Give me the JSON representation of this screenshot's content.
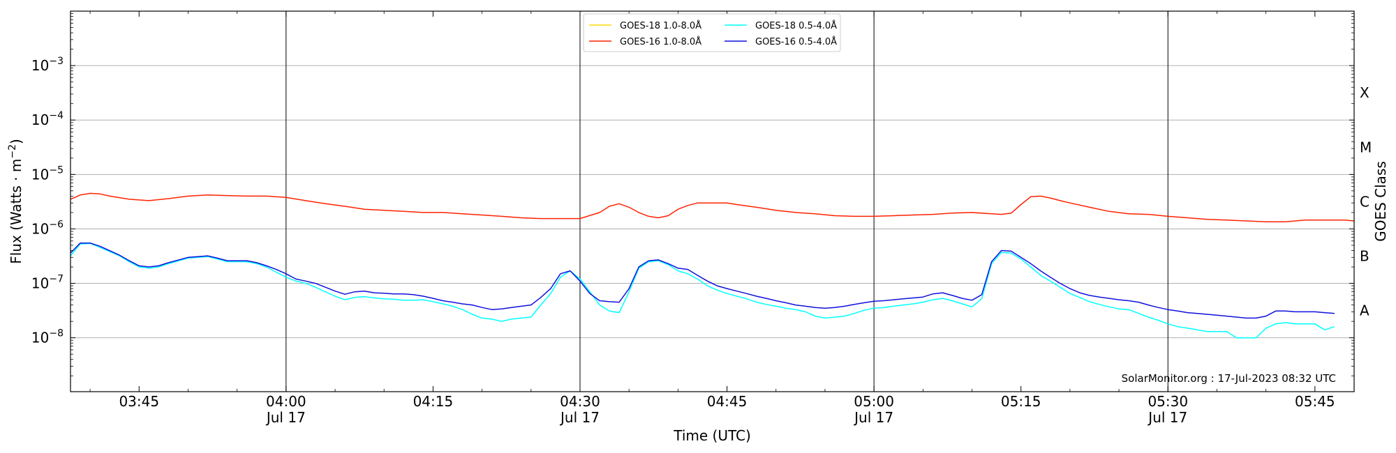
{
  "chart_data": {
    "type": "line",
    "xlabel": "Time (UTC)",
    "ylabel_prefix": "Flux (Watts · m",
    "ylabel_exp": "−2",
    "ylabel_suffix": ")",
    "right_ylabel": "GOES Class",
    "credit": "SolarMonitor.org : 17-Jul-2023 08:32 UTC",
    "x_range_min": [
      218,
      349
    ],
    "y_range_log10": [
      -8.99,
      -2.0
    ],
    "y_scale": "log",
    "grid": "horizontal",
    "legend_placement": "top-center",
    "x_ticks": [
      {
        "min": 225,
        "label": "03:45",
        "sub": ""
      },
      {
        "min": 240,
        "label": "04:00",
        "sub": "Jul 17"
      },
      {
        "min": 255,
        "label": "04:15",
        "sub": ""
      },
      {
        "min": 270,
        "label": "04:30",
        "sub": "Jul 17"
      },
      {
        "min": 285,
        "label": "04:45",
        "sub": ""
      },
      {
        "min": 300,
        "label": "05:00",
        "sub": "Jul 17"
      },
      {
        "min": 315,
        "label": "05:15",
        "sub": ""
      },
      {
        "min": 330,
        "label": "05:30",
        "sub": "Jul 17"
      },
      {
        "min": 345,
        "label": "05:45",
        "sub": ""
      }
    ],
    "day_lines_min": [
      240,
      270,
      300,
      330
    ],
    "y_ticks": [
      {
        "exp": -8,
        "base": "10",
        "pow": "−8"
      },
      {
        "exp": -7,
        "base": "10",
        "pow": "−7"
      },
      {
        "exp": -6,
        "base": "10",
        "pow": "−6"
      },
      {
        "exp": -5,
        "base": "10",
        "pow": "−5"
      },
      {
        "exp": -4,
        "base": "10",
        "pow": "−4"
      },
      {
        "exp": -3,
        "base": "10",
        "pow": "−3"
      }
    ],
    "goes_classes": [
      {
        "label": "A",
        "exp": -7.5
      },
      {
        "label": "B",
        "exp": -6.5
      },
      {
        "label": "C",
        "exp": -5.5
      },
      {
        "label": "M",
        "exp": -4.5
      },
      {
        "label": "X",
        "exp": -3.5
      }
    ],
    "legend": [
      {
        "label": "GOES-18 1.0-8.0Å",
        "color": "#ffd700"
      },
      {
        "label": "GOES-18 0.5-4.0Å",
        "color": "#00ffff"
      },
      {
        "label": "GOES-16 1.0-8.0Å",
        "color": "#ff2200"
      },
      {
        "label": "GOES-16 0.5-4.0Å",
        "color": "#1010dd"
      }
    ],
    "series": [
      {
        "name": "GOES-18 0.5-4.0Å",
        "color": "#00ffff",
        "x_min": [
          218,
          219,
          220,
          221,
          223,
          224,
          225,
          226,
          227,
          228,
          230,
          231,
          232,
          233,
          234,
          235,
          236,
          237,
          238,
          239,
          240,
          241,
          242,
          243,
          244,
          245,
          246,
          247,
          248,
          249,
          250,
          251,
          252,
          253,
          254,
          255,
          256,
          257,
          258,
          259,
          260,
          261,
          262,
          263,
          264,
          265,
          266,
          267,
          268,
          269,
          270,
          271,
          272,
          273,
          274,
          275,
          276,
          277,
          278,
          279,
          280,
          281,
          282,
          283,
          284,
          285,
          286,
          287,
          288,
          289,
          290,
          291,
          292,
          293,
          294,
          295,
          296,
          297,
          298,
          299,
          300,
          301,
          302,
          303,
          304,
          305,
          306,
          307,
          308,
          309,
          310,
          311,
          312,
          313,
          314,
          315,
          316,
          317,
          318,
          319,
          320,
          321,
          322,
          323,
          324,
          325,
          326,
          327,
          328,
          329,
          330,
          331,
          332,
          333,
          334,
          335,
          336,
          337,
          338,
          339,
          340,
          341,
          342,
          343,
          344,
          345,
          346,
          347,
          348,
          349
        ],
        "values": [
          3.2e-07,
          5.3e-07,
          5.4e-07,
          4.6e-07,
          3.2e-07,
          2.5e-07,
          2e-07,
          1.9e-07,
          2e-07,
          2.3e-07,
          2.9e-07,
          3e-07,
          3.1e-07,
          2.8e-07,
          2.5e-07,
          2.5e-07,
          2.5e-07,
          2.3e-07,
          2e-07,
          1.6e-07,
          1.3e-07,
          1.1e-07,
          1e-07,
          8.5e-08,
          7e-08,
          5.8e-08,
          5e-08,
          5.5e-08,
          5.7e-08,
          5.4e-08,
          5.2e-08,
          5.1e-08,
          4.9e-08,
          4.9e-08,
          5e-08,
          4.6e-08,
          4.2e-08,
          3.8e-08,
          3.3e-08,
          2.7e-08,
          2.3e-08,
          2.2e-08,
          2e-08,
          2.2e-08,
          2.3e-08,
          2.4e-08,
          4e-08,
          6.5e-08,
          1.3e-07,
          1.7e-07,
          1.2e-07,
          7e-08,
          4e-08,
          3.1e-08,
          2.9e-08,
          7e-08,
          1.9e-07,
          2.5e-07,
          2.6e-07,
          2.2e-07,
          1.7e-07,
          1.5e-07,
          1.2e-07,
          9e-08,
          7.5e-08,
          6.5e-08,
          5.8e-08,
          5.2e-08,
          4.5e-08,
          4.1e-08,
          3.8e-08,
          3.5e-08,
          3.3e-08,
          3e-08,
          2.5e-08,
          2.3e-08,
          2.4e-08,
          2.5e-08,
          2.8e-08,
          3.2e-08,
          3.5e-08,
          3.6e-08,
          3.8e-08,
          4e-08,
          4.2e-08,
          4.5e-08,
          5e-08,
          5.3e-08,
          4.8e-08,
          4.2e-08,
          3.7e-08,
          5.2e-08,
          2.3e-07,
          3.7e-07,
          3.6e-07,
          2.8e-07,
          2e-07,
          1.4e-07,
          1.1e-07,
          8.5e-08,
          6.5e-08,
          5.5e-08,
          4.6e-08,
          4.1e-08,
          3.7e-08,
          3.4e-08,
          3.3e-08,
          2.8e-08,
          2.4e-08,
          2.1e-08,
          1.8e-08,
          1.6e-08,
          1.5e-08,
          1.4e-08,
          1.3e-08,
          1.3e-08,
          1.3e-08,
          1e-08,
          1e-08,
          1e-08,
          1.5e-08,
          1.8e-08,
          1.9e-08,
          1.8e-08,
          1.8e-08,
          1.8e-08,
          1.4e-08,
          1.6e-08
        ]
      },
      {
        "name": "GOES-16 1.0-8.0Å",
        "color": "#ff2200",
        "x_min": [
          218,
          219,
          220,
          221,
          222,
          224,
          226,
          228,
          230,
          232,
          234,
          236,
          238,
          240,
          242,
          244,
          246,
          248,
          250,
          252,
          254,
          256,
          258,
          260,
          262,
          264,
          266,
          268,
          270,
          272,
          273,
          274,
          275,
          276,
          277,
          278,
          279,
          280,
          281,
          282,
          283,
          284,
          285,
          286,
          288,
          290,
          292,
          294,
          296,
          298,
          300,
          302,
          304,
          306,
          308,
          310,
          312,
          313,
          314,
          315,
          316,
          317,
          318,
          319,
          320,
          322,
          324,
          326,
          328,
          330,
          332,
          334,
          336,
          338,
          340,
          342,
          344,
          346,
          348,
          349
        ],
        "values": [
          3.5e-06,
          4.2e-06,
          4.5e-06,
          4.4e-06,
          4e-06,
          3.5e-06,
          3.3e-06,
          3.6e-06,
          4e-06,
          4.2e-06,
          4.1e-06,
          4e-06,
          4e-06,
          3.8e-06,
          3.3e-06,
          2.9e-06,
          2.6e-06,
          2.3e-06,
          2.2e-06,
          2.1e-06,
          2e-06,
          2e-06,
          1.9e-06,
          1.8e-06,
          1.7e-06,
          1.6e-06,
          1.55e-06,
          1.55e-06,
          1.55e-06,
          2e-06,
          2.6e-06,
          2.9e-06,
          2.5e-06,
          2e-06,
          1.7e-06,
          1.6e-06,
          1.75e-06,
          2.3e-06,
          2.7e-06,
          3e-06,
          3e-06,
          3e-06,
          3e-06,
          2.8e-06,
          2.5e-06,
          2.2e-06,
          2e-06,
          1.9e-06,
          1.75e-06,
          1.7e-06,
          1.7e-06,
          1.75e-06,
          1.8e-06,
          1.85e-06,
          1.95e-06,
          2e-06,
          1.9e-06,
          1.85e-06,
          1.95e-06,
          2.8e-06,
          3.9e-06,
          4e-06,
          3.7e-06,
          3.3e-06,
          3e-06,
          2.5e-06,
          2.1e-06,
          1.9e-06,
          1.85e-06,
          1.7e-06,
          1.6e-06,
          1.5e-06,
          1.45e-06,
          1.4e-06,
          1.35e-06,
          1.35e-06,
          1.45e-06,
          1.45e-06,
          1.45e-06,
          1.4e-06
        ]
      },
      {
        "name": "GOES-16 0.5-4.0Å",
        "color": "#1010dd",
        "x_min": [
          218,
          219,
          220,
          221,
          223,
          224,
          225,
          226,
          227,
          228,
          230,
          231,
          232,
          233,
          234,
          235,
          236,
          237,
          238,
          239,
          240,
          241,
          242,
          243,
          244,
          245,
          246,
          247,
          248,
          249,
          250,
          251,
          252,
          253,
          254,
          255,
          256,
          257,
          258,
          259,
          260,
          261,
          262,
          263,
          264,
          265,
          266,
          267,
          268,
          269,
          270,
          271,
          272,
          273,
          274,
          275,
          276,
          277,
          278,
          279,
          280,
          281,
          282,
          283,
          284,
          285,
          286,
          287,
          288,
          289,
          290,
          291,
          292,
          293,
          294,
          295,
          296,
          297,
          298,
          299,
          300,
          301,
          302,
          303,
          304,
          305,
          306,
          307,
          308,
          309,
          310,
          311,
          312,
          313,
          314,
          315,
          316,
          317,
          318,
          319,
          320,
          321,
          322,
          323,
          324,
          325,
          326,
          327,
          328,
          329,
          330,
          331,
          332,
          333,
          334,
          335,
          336,
          337,
          338,
          339,
          340,
          341,
          342,
          343,
          344,
          345,
          346,
          347,
          348,
          349
        ],
        "values": [
          3.6e-07,
          5.5e-07,
          5.5e-07,
          4.8e-07,
          3.3e-07,
          2.6e-07,
          2.1e-07,
          2e-07,
          2.1e-07,
          2.4e-07,
          3e-07,
          3.1e-07,
          3.2e-07,
          2.9e-07,
          2.6e-07,
          2.6e-07,
          2.6e-07,
          2.4e-07,
          2.1e-07,
          1.8e-07,
          1.5e-07,
          1.2e-07,
          1.1e-07,
          1e-07,
          8.5e-08,
          7.2e-08,
          6.3e-08,
          7e-08,
          7.2e-08,
          6.7e-08,
          6.6e-08,
          6.4e-08,
          6.4e-08,
          6.2e-08,
          5.8e-08,
          5.3e-08,
          4.8e-08,
          4.5e-08,
          4.2e-08,
          4e-08,
          3.6e-08,
          3.3e-08,
          3.4e-08,
          3.6e-08,
          3.8e-08,
          4e-08,
          5.5e-08,
          8e-08,
          1.5e-07,
          1.7e-07,
          1.1e-07,
          6.5e-08,
          4.8e-08,
          4.6e-08,
          4.5e-08,
          8e-08,
          2e-07,
          2.6e-07,
          2.7e-07,
          2.3e-07,
          1.9e-07,
          1.8e-07,
          1.4e-07,
          1.1e-07,
          9e-08,
          8e-08,
          7.2e-08,
          6.5e-08,
          5.8e-08,
          5.3e-08,
          4.8e-08,
          4.4e-08,
          4e-08,
          3.8e-08,
          3.6e-08,
          3.5e-08,
          3.6e-08,
          3.8e-08,
          4.1e-08,
          4.4e-08,
          4.7e-08,
          4.8e-08,
          5e-08,
          5.2e-08,
          5.4e-08,
          5.6e-08,
          6.4e-08,
          6.7e-08,
          6e-08,
          5.3e-08,
          4.9e-08,
          6.2e-08,
          2.5e-07,
          4e-07,
          3.9e-07,
          3e-07,
          2.3e-07,
          1.7e-07,
          1.3e-07,
          1e-07,
          8e-08,
          6.7e-08,
          6e-08,
          5.6e-08,
          5.3e-08,
          5e-08,
          4.8e-08,
          4.5e-08,
          4e-08,
          3.6e-08,
          3.3e-08,
          3.1e-08,
          2.9e-08,
          2.8e-08,
          2.7e-08,
          2.6e-08,
          2.5e-08,
          2.4e-08,
          2.3e-08,
          2.3e-08,
          2.5e-08,
          3.1e-08,
          3.1e-08,
          3e-08,
          3e-08,
          3e-08,
          2.9e-08,
          2.8e-08
        ]
      }
    ]
  }
}
